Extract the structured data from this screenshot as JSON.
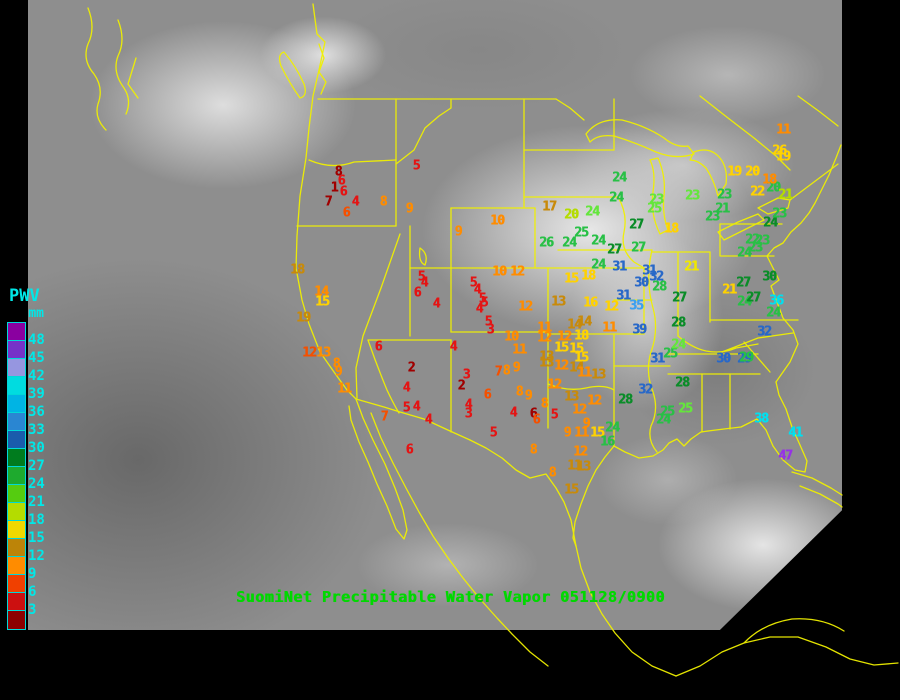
{
  "caption": {
    "text": "SuomiNet Precipitable Water Vapor 051128/0900",
    "color": "#00d800"
  },
  "map": {
    "outline_color": "#f0f000",
    "background": "#000000"
  },
  "legend": {
    "title": "PWV",
    "unit": "mm",
    "text_color": "#00e8e8",
    "entries": [
      {
        "label": "48",
        "color": "#8a00a0"
      },
      {
        "label": "45",
        "color": "#7632c8"
      },
      {
        "label": "42",
        "color": "#9696e0"
      },
      {
        "label": "39",
        "color": "#00dce0"
      },
      {
        "label": "36",
        "color": "#00b4e4"
      },
      {
        "label": "33",
        "color": "#2a86d2"
      },
      {
        "label": "30",
        "color": "#1a5cac"
      },
      {
        "label": "27",
        "color": "#007c1e"
      },
      {
        "label": "24",
        "color": "#1eaa2e"
      },
      {
        "label": "21",
        "color": "#55cc10"
      },
      {
        "label": "18",
        "color": "#b4dc00"
      },
      {
        "label": "15",
        "color": "#f0d800"
      },
      {
        "label": "12",
        "color": "#bc8408"
      },
      {
        "label": "9",
        "color": "#ff8c00"
      },
      {
        "label": "6",
        "color": "#f04000"
      },
      {
        "label": "3",
        "color": "#cc1010"
      },
      {
        "label": "",
        "color": "#8c0000"
      }
    ]
  },
  "palette": {
    "DR": "#a00000",
    "R": "#e41414",
    "OR": "#f45000",
    "O": "#ff8c00",
    "DY": "#c88a0a",
    "Y": "#ffd200",
    "BY": "#f0e800",
    "YG": "#b4dc00",
    "LG": "#64e63c",
    "G": "#28c046",
    "DG": "#0a8c28",
    "DB": "#2868c8",
    "LB": "#3ca0f0",
    "CY": "#00e0f0",
    "PU": "#9632e6"
  },
  "station_format": [
    "value",
    "x",
    "y",
    "color_key"
  ],
  "stations": [
    [
      "5",
      416,
      166,
      "R"
    ],
    [
      "8",
      338,
      172,
      "DR"
    ],
    [
      "6",
      341,
      181,
      "R"
    ],
    [
      "1",
      334,
      188,
      "DR"
    ],
    [
      "6",
      343,
      192,
      "R"
    ],
    [
      "7",
      328,
      202,
      "DR"
    ],
    [
      "4",
      355,
      202,
      "R"
    ],
    [
      "6",
      346,
      213,
      "OR"
    ],
    [
      "8",
      383,
      202,
      "O"
    ],
    [
      "9",
      409,
      209,
      "O"
    ],
    [
      "9",
      458,
      232,
      "O"
    ],
    [
      "10",
      497,
      221,
      "O"
    ],
    [
      "18",
      297,
      270,
      "DY"
    ],
    [
      "14",
      321,
      292,
      "O"
    ],
    [
      "15",
      322,
      302,
      "Y"
    ],
    [
      "19",
      303,
      318,
      "DY"
    ],
    [
      "12",
      309,
      353,
      "OR"
    ],
    [
      "13",
      323,
      353,
      "O"
    ],
    [
      "8",
      336,
      364,
      "O"
    ],
    [
      "9",
      338,
      372,
      "O"
    ],
    [
      "11",
      344,
      389,
      "O"
    ],
    [
      "5",
      421,
      277,
      "R"
    ],
    [
      "4",
      424,
      283,
      "R"
    ],
    [
      "6",
      417,
      293,
      "R"
    ],
    [
      "4",
      436,
      304,
      "R"
    ],
    [
      "6",
      378,
      347,
      "R"
    ],
    [
      "2",
      411,
      368,
      "DR"
    ],
    [
      "4",
      406,
      388,
      "R"
    ],
    [
      "5",
      406,
      408,
      "R"
    ],
    [
      "4",
      416,
      407,
      "R"
    ],
    [
      "7",
      384,
      417,
      "OR"
    ],
    [
      "4",
      428,
      420,
      "R"
    ],
    [
      "6",
      409,
      450,
      "R"
    ],
    [
      "4",
      453,
      347,
      "R"
    ],
    [
      "5",
      473,
      283,
      "R"
    ],
    [
      "4",
      477,
      290,
      "R"
    ],
    [
      "5",
      482,
      299,
      "R"
    ],
    [
      "5",
      484,
      303,
      "R"
    ],
    [
      "4",
      479,
      309,
      "R"
    ],
    [
      "5",
      488,
      322,
      "R"
    ],
    [
      "3",
      490,
      330,
      "R"
    ],
    [
      "3",
      466,
      375,
      "R"
    ],
    [
      "2",
      461,
      386,
      "DR"
    ],
    [
      "6",
      487,
      395,
      "OR"
    ],
    [
      "4",
      468,
      405,
      "R"
    ],
    [
      "3",
      468,
      414,
      "R"
    ],
    [
      "5",
      493,
      433,
      "R"
    ],
    [
      "4",
      513,
      413,
      "R"
    ],
    [
      "6",
      533,
      414,
      "DR"
    ],
    [
      "10",
      499,
      272,
      "O"
    ],
    [
      "12",
      517,
      272,
      "O"
    ],
    [
      "17",
      549,
      207,
      "DY"
    ],
    [
      "20",
      571,
      215,
      "YG"
    ],
    [
      "24",
      592,
      212,
      "LG"
    ],
    [
      "25",
      581,
      233,
      "G"
    ],
    [
      "26",
      546,
      243,
      "G"
    ],
    [
      "24",
      569,
      243,
      "G"
    ],
    [
      "24",
      598,
      241,
      "G"
    ],
    [
      "24",
      598,
      265,
      "G"
    ],
    [
      "15",
      571,
      279,
      "Y"
    ],
    [
      "18",
      588,
      276,
      "Y"
    ],
    [
      "12",
      525,
      307,
      "O"
    ],
    [
      "13",
      558,
      302,
      "DY"
    ],
    [
      "16",
      590,
      303,
      "Y"
    ],
    [
      "12",
      611,
      307,
      "Y"
    ],
    [
      "10",
      511,
      337,
      "O"
    ],
    [
      "11",
      519,
      350,
      "O"
    ],
    [
      "7",
      498,
      372,
      "OR"
    ],
    [
      "8",
      506,
      371,
      "O"
    ],
    [
      "9",
      516,
      368,
      "O"
    ],
    [
      "11",
      544,
      328,
      "O"
    ],
    [
      "14",
      574,
      325,
      "DY"
    ],
    [
      "14",
      584,
      322,
      "DY"
    ],
    [
      "12",
      544,
      338,
      "O"
    ],
    [
      "12",
      564,
      337,
      "O"
    ],
    [
      "18",
      581,
      336,
      "Y"
    ],
    [
      "11",
      609,
      328,
      "O"
    ],
    [
      "15",
      561,
      348,
      "Y"
    ],
    [
      "15",
      576,
      349,
      "Y"
    ],
    [
      "13",
      546,
      357,
      "DY"
    ],
    [
      "15",
      581,
      358,
      "Y"
    ],
    [
      "13",
      546,
      363,
      "DY"
    ],
    [
      "12",
      561,
      366,
      "O"
    ],
    [
      "14",
      576,
      368,
      "DY"
    ],
    [
      "11",
      584,
      373,
      "O"
    ],
    [
      "13",
      598,
      375,
      "DY"
    ],
    [
      "12",
      554,
      385,
      "O"
    ],
    [
      "8",
      519,
      392,
      "O"
    ],
    [
      "9",
      528,
      396,
      "O"
    ],
    [
      "13",
      571,
      397,
      "DY"
    ],
    [
      "12",
      594,
      401,
      "O"
    ],
    [
      "8",
      544,
      404,
      "O"
    ],
    [
      "5",
      554,
      415,
      "R"
    ],
    [
      "6",
      536,
      420,
      "OR"
    ],
    [
      "12",
      579,
      410,
      "O"
    ],
    [
      "9",
      586,
      424,
      "O"
    ],
    [
      "9",
      567,
      433,
      "O"
    ],
    [
      "11",
      581,
      433,
      "O"
    ],
    [
      "15",
      597,
      433,
      "Y"
    ],
    [
      "12",
      580,
      452,
      "O"
    ],
    [
      "11",
      574,
      466,
      "DY"
    ],
    [
      "13",
      583,
      467,
      "DY"
    ],
    [
      "8",
      533,
      450,
      "O"
    ],
    [
      "8",
      552,
      473,
      "O"
    ],
    [
      "15",
      571,
      490,
      "DY"
    ],
    [
      "24",
      612,
      428,
      "G"
    ],
    [
      "16",
      607,
      442,
      "G"
    ],
    [
      "24",
      619,
      178,
      "G"
    ],
    [
      "24",
      616,
      198,
      "G"
    ],
    [
      "23",
      656,
      200,
      "LG"
    ],
    [
      "25",
      654,
      209,
      "LG"
    ],
    [
      "23",
      692,
      196,
      "LG"
    ],
    [
      "23",
      724,
      195,
      "G"
    ],
    [
      "27",
      636,
      225,
      "DG"
    ],
    [
      "18",
      671,
      229,
      "Y"
    ],
    [
      "27",
      614,
      250,
      "DG"
    ],
    [
      "27",
      638,
      248,
      "G"
    ],
    [
      "31",
      619,
      267,
      "DB"
    ],
    [
      "21",
      691,
      267,
      "BY"
    ],
    [
      "31",
      649,
      271,
      "DB"
    ],
    [
      "32",
      656,
      277,
      "DB"
    ],
    [
      "30",
      641,
      283,
      "DB"
    ],
    [
      "28",
      659,
      287,
      "G"
    ],
    [
      "31",
      623,
      296,
      "DB"
    ],
    [
      "35",
      636,
      306,
      "LB"
    ],
    [
      "27",
      679,
      298,
      "DG"
    ],
    [
      "39",
      639,
      330,
      "DB"
    ],
    [
      "28",
      678,
      323,
      "DG"
    ],
    [
      "30",
      723,
      359,
      "DB"
    ],
    [
      "29",
      744,
      359,
      "DB"
    ],
    [
      "25",
      670,
      354,
      "G"
    ],
    [
      "24",
      678,
      345,
      "LG"
    ],
    [
      "31",
      657,
      359,
      "DB"
    ],
    [
      "32",
      645,
      390,
      "DB"
    ],
    [
      "28",
      625,
      400,
      "DG"
    ],
    [
      "28",
      682,
      383,
      "DG"
    ],
    [
      "25",
      667,
      412,
      "G"
    ],
    [
      "25",
      685,
      409,
      "LG"
    ],
    [
      "24",
      663,
      420,
      "G"
    ],
    [
      "32",
      764,
      332,
      "DB"
    ],
    [
      "29",
      746,
      358,
      "G"
    ],
    [
      "21",
      729,
      290,
      "Y"
    ],
    [
      "27",
      743,
      283,
      "DG"
    ],
    [
      "24",
      744,
      302,
      "G"
    ],
    [
      "27",
      753,
      298,
      "DG"
    ],
    [
      "36",
      776,
      301,
      "CY"
    ],
    [
      "24",
      773,
      313,
      "G"
    ],
    [
      "30",
      769,
      277,
      "DG"
    ],
    [
      "24",
      770,
      223,
      "DG"
    ],
    [
      "23",
      779,
      214,
      "G"
    ],
    [
      "22",
      752,
      240,
      "G"
    ],
    [
      "23",
      762,
      241,
      "G"
    ],
    [
      "24",
      744,
      253,
      "G"
    ],
    [
      "23",
      755,
      248,
      "G"
    ],
    [
      "23",
      712,
      217,
      "G"
    ],
    [
      "21",
      722,
      209,
      "G"
    ],
    [
      "20",
      773,
      188,
      "G"
    ],
    [
      "22",
      757,
      192,
      "Y"
    ],
    [
      "21",
      785,
      195,
      "YG"
    ],
    [
      "19",
      734,
      172,
      "Y"
    ],
    [
      "20",
      752,
      172,
      "Y"
    ],
    [
      "18",
      769,
      180,
      "O"
    ],
    [
      "26",
      779,
      151,
      "Y"
    ],
    [
      "19",
      783,
      157,
      "Y"
    ],
    [
      "11",
      783,
      130,
      "O"
    ],
    [
      "38",
      761,
      419,
      "CY"
    ],
    [
      "41",
      795,
      433,
      "CY"
    ],
    [
      "47",
      785,
      456,
      "PU"
    ]
  ]
}
